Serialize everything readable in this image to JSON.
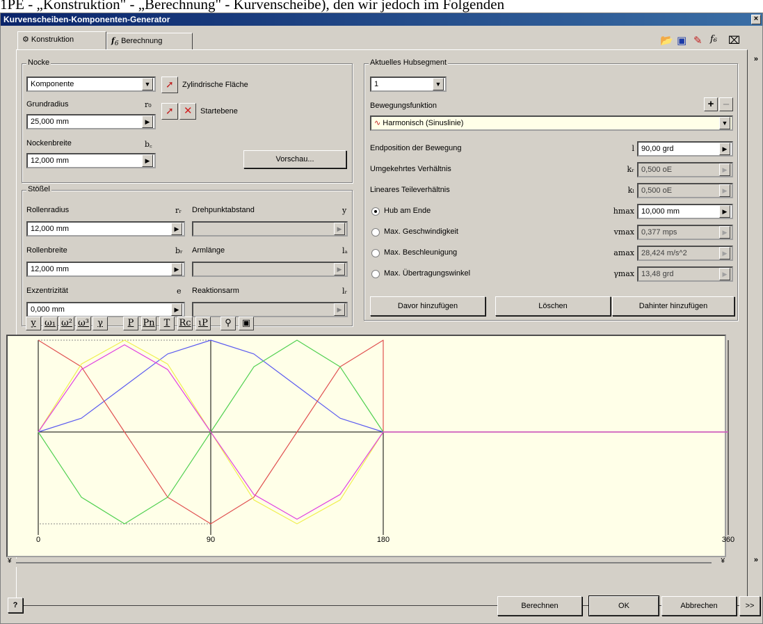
{
  "page_heading": "1PE - „Konstruktion\" - „Berechnung\" - Kurvenscheibe), den wir jedoch im Folgenden",
  "window": {
    "title": "Kurvenscheiben-Komponenten-Generator",
    "close": "×"
  },
  "tabs": [
    {
      "label": "Konstruktion",
      "active": true
    },
    {
      "label": "Berechnung",
      "active": false
    }
  ],
  "top_icons": [
    "folder-open-icon",
    "save-icon",
    "settings-icon",
    "calc-icon",
    "eraser-icon"
  ],
  "nocke": {
    "group_title": "Nocke",
    "type_select": "Komponente",
    "select_cyl_label": "Zylindrische Fläche",
    "start_plane_label": "Startebene",
    "grundradius_label": "Grundradius",
    "grundradius_sym": "r₀",
    "grundradius_value": "25,000 mm",
    "nockenbreite_label": "Nockenbreite",
    "nockenbreite_sym": "b꜀",
    "nockenbreite_value": "12,000 mm",
    "preview_button": "Vorschau..."
  },
  "stoessel": {
    "group_title": "Stößel",
    "rollenradius_label": "Rollenradius",
    "rollenradius_sym": "rᵣ",
    "rollenradius_value": "12,000 mm",
    "rollenbreite_label": "Rollenbreite",
    "rollenbreite_sym": "bᵣ",
    "rollenbreite_value": "12,000 mm",
    "exzentrizitaet_label": "Exzentrizität",
    "exzentrizitaet_sym": "e",
    "exzentrizitaet_value": "0,000 mm",
    "drehpunkt_label": "Drehpunktabstand",
    "drehpunkt_sym": "y",
    "armlaenge_label": "Armlänge",
    "armlaenge_sym": "lₐ",
    "reaktionsarm_label": "Reaktionsarm",
    "reaktionsarm_sym": "lᵣ"
  },
  "hub": {
    "group_title": "Aktuelles Hubsegment",
    "segment_value": "1",
    "bewegung_label": "Bewegungsfunktion",
    "bewegung_value": "Harmonisch (Sinuslinie)",
    "plus": "+",
    "minus": "–",
    "rows": [
      {
        "label": "Endposition der Bewegung",
        "sym": "l",
        "value": "90,00 grd",
        "enabled": true,
        "radio": false
      },
      {
        "label": "Umgekehrtes Verhältnis",
        "sym": "kᵣ",
        "value": "0,500 oE",
        "enabled": false,
        "radio": false
      },
      {
        "label": "Lineares Teileverhältnis",
        "sym": "kₗ",
        "value": "0,500 oE",
        "enabled": false,
        "radio": false
      },
      {
        "label": "Hub am Ende",
        "sym": "hmax",
        "value": "10,000 mm",
        "enabled": true,
        "radio": true,
        "checked": true
      },
      {
        "label": "Max. Geschwindigkeit",
        "sym": "vmax",
        "value": "0,377 mps",
        "enabled": false,
        "radio": true,
        "checked": false
      },
      {
        "label": "Max. Beschleunigung",
        "sym": "amax",
        "value": "28,424 m/s^2",
        "enabled": false,
        "radio": true,
        "checked": false
      },
      {
        "label": "Max. Übertragungswinkel",
        "sym": "γmax",
        "value": "13,48 grd",
        "enabled": false,
        "radio": true,
        "checked": false
      }
    ],
    "btn_before": "Davor hinzufügen",
    "btn_delete": "Löschen",
    "btn_after": "Dahinter hinzufügen"
  },
  "plot_toolbar": [
    "y",
    "ω₁",
    "ω²",
    "ω³",
    "γ",
    "P",
    "Pn",
    "T",
    "Rc",
    "ιP",
    "zoom-icon",
    "save-icon"
  ],
  "chart_data": {
    "type": "line",
    "x_ticks": [
      "0",
      "90",
      "180",
      "360"
    ],
    "xlim": [
      0,
      360
    ],
    "ylim": [
      -1,
      1
    ],
    "grid": false,
    "series": [
      {
        "color": "#5a5af0",
        "x": [
          0,
          22.5,
          45,
          67.5,
          90,
          112.5,
          135,
          157.5,
          180,
          360
        ],
        "y": [
          0,
          0.15,
          0.5,
          0.85,
          1.0,
          0.85,
          0.5,
          0.15,
          0,
          0
        ]
      },
      {
        "color": "#e05050",
        "x": [
          0,
          22.5,
          45,
          67.5,
          90,
          112.5,
          135,
          157.5,
          180,
          180,
          360
        ],
        "y": [
          1.0,
          0.71,
          0,
          -0.71,
          -1.0,
          -0.71,
          0,
          0.71,
          1.0,
          0,
          0
        ]
      },
      {
        "color": "#50d050",
        "x": [
          0,
          22.5,
          45,
          67.5,
          90,
          112.5,
          135,
          157.5,
          180,
          360
        ],
        "y": [
          0,
          -0.71,
          -1.0,
          -0.71,
          0,
          0.71,
          1.0,
          0.71,
          0,
          0
        ]
      },
      {
        "color": "#f0f050",
        "x": [
          0,
          22.5,
          45,
          67.5,
          90,
          112.5,
          135,
          157.5,
          180,
          360
        ],
        "y": [
          0,
          0.74,
          1.0,
          0.74,
          0,
          -0.74,
          -1.0,
          -0.74,
          0,
          0
        ]
      },
      {
        "color": "#e040e0",
        "x": [
          0,
          22.5,
          45,
          67.5,
          90,
          112.5,
          135,
          157.5,
          180,
          360
        ],
        "y": [
          0,
          0.68,
          0.95,
          0.68,
          0,
          -0.68,
          -0.95,
          -0.68,
          0,
          0
        ]
      }
    ]
  },
  "footer": {
    "help": "?",
    "berechnen": "Berechnen",
    "ok": "OK",
    "abbrechen": "Abbrechen",
    "more": ">>"
  }
}
